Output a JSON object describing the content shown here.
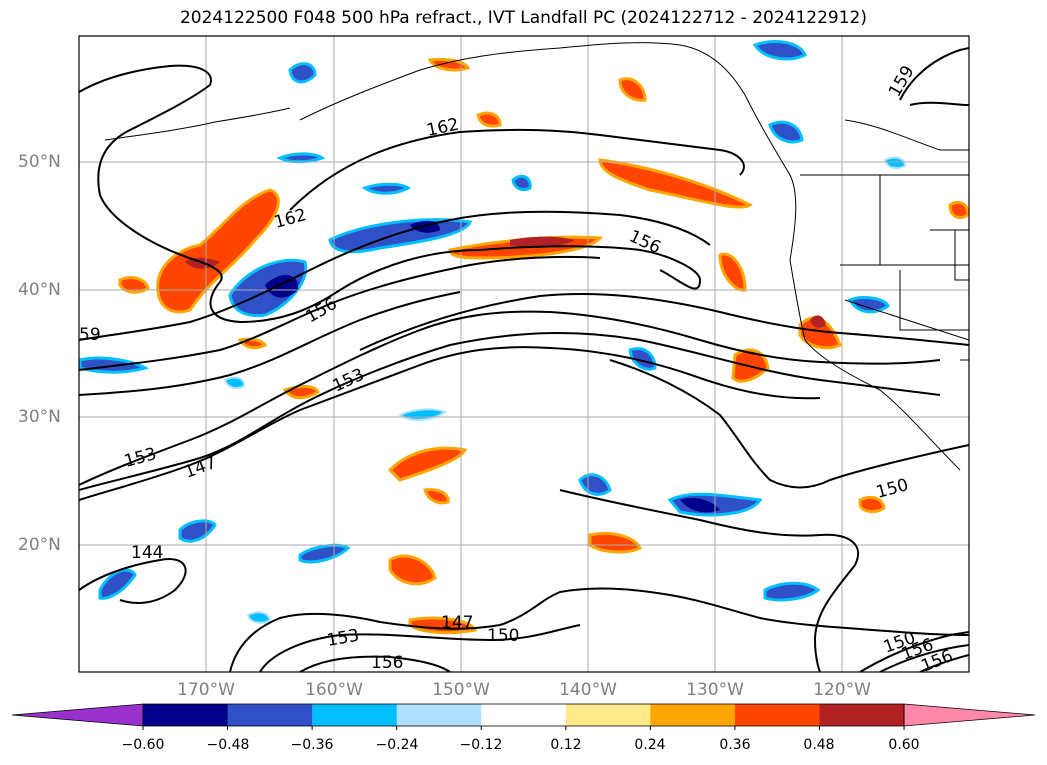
{
  "title": "2024122500 F048 500 hPa refract., IVT Landfall PC (2024122712 - 2024122912)",
  "lat_labels": [
    "50°N",
    "40°N",
    "30°N",
    "20°N"
  ],
  "lon_labels": [
    "170°W",
    "160°W",
    "150°W",
    "140°W",
    "130°W",
    "120°W"
  ],
  "contour_labels": [
    "162",
    "162",
    "156",
    "156",
    "159",
    "59",
    "153",
    "153",
    "147",
    "150",
    "144",
    "147",
    "150",
    "153",
    "156",
    "150",
    "156",
    "156"
  ],
  "colorbar": {
    "ticks": [
      "−0.60",
      "−0.48",
      "−0.36",
      "−0.24",
      "−0.12",
      "0.12",
      "0.24",
      "0.36",
      "0.48",
      "0.60"
    ],
    "colors": [
      "#9932cc",
      "#00008b",
      "#3050c8",
      "#00bfff",
      "#b0e0ff",
      "#ffffff",
      "#ffe98a",
      "#ffa500",
      "#ff4500",
      "#b22222",
      "#ff88aa"
    ]
  },
  "colors": {
    "contour": "#000000",
    "grid": "#aaaaaa",
    "coast": "#000000",
    "label": "#808080"
  }
}
